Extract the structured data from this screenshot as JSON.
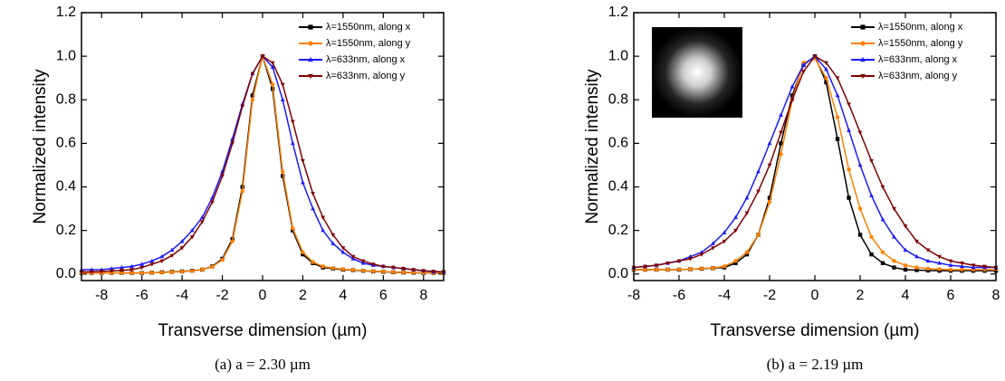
{
  "chart_data": [
    {
      "type": "line",
      "caption": "(a) a = 2.30 µm",
      "xlabel": "Transverse dimension (µm)",
      "ylabel": "Normalized intensity",
      "x": [
        -9,
        -8.5,
        -8,
        -7.5,
        -7,
        -6.5,
        -6,
        -5.5,
        -5,
        -4.5,
        -4,
        -3.5,
        -3,
        -2.5,
        -2,
        -1.5,
        -1,
        -0.5,
        0,
        0.5,
        1,
        1.5,
        2,
        2.5,
        3,
        3.5,
        4,
        4.5,
        5,
        5.5,
        6,
        6.5,
        7,
        7.5,
        8,
        8.5,
        9
      ],
      "xlim": [
        -9,
        9
      ],
      "xticks": [
        -8,
        -6,
        -4,
        -2,
        0,
        2,
        4,
        6,
        8
      ],
      "ylim": [
        -0.03,
        1.2
      ],
      "yticks": [
        {
          "value": 0,
          "label": "0.0"
        },
        0.2,
        0.4,
        0.6,
        0.8,
        {
          "value": 1,
          "label": "1.0"
        },
        1.2
      ],
      "series": [
        {
          "name": "λ=1550nm, along x",
          "color": "#000000",
          "marker": "square",
          "values": [
            0.005,
            0.005,
            0.005,
            0.005,
            0.005,
            0.005,
            0.005,
            0.006,
            0.008,
            0.01,
            0.012,
            0.015,
            0.02,
            0.035,
            0.07,
            0.16,
            0.4,
            0.82,
            1.0,
            0.85,
            0.45,
            0.2,
            0.09,
            0.05,
            0.03,
            0.025,
            0.02,
            0.018,
            0.015,
            0.012,
            0.01,
            0.008,
            0.007,
            0.006,
            0.005,
            0.005,
            0.005
          ]
        },
        {
          "name": "λ=1550nm, along y",
          "color": "#ff8000",
          "marker": "circle",
          "values": [
            0.005,
            0.005,
            0.005,
            0.005,
            0.005,
            0.005,
            0.005,
            0.006,
            0.007,
            0.009,
            0.011,
            0.014,
            0.02,
            0.033,
            0.065,
            0.15,
            0.38,
            0.8,
            1.0,
            0.87,
            0.47,
            0.21,
            0.1,
            0.055,
            0.035,
            0.027,
            0.022,
            0.019,
            0.016,
            0.013,
            0.011,
            0.009,
            0.008,
            0.007,
            0.006,
            0.005,
            0.005
          ]
        },
        {
          "name": "λ=633nm, along x",
          "color": "#1a1aff",
          "marker": "triangle-up",
          "values": [
            0.02,
            0.02,
            0.02,
            0.025,
            0.03,
            0.035,
            0.045,
            0.06,
            0.08,
            0.11,
            0.15,
            0.2,
            0.26,
            0.35,
            0.47,
            0.62,
            0.78,
            0.92,
            1.0,
            0.95,
            0.8,
            0.6,
            0.42,
            0.3,
            0.2,
            0.14,
            0.1,
            0.07,
            0.05,
            0.04,
            0.035,
            0.03,
            0.025,
            0.02,
            0.015,
            0.01,
            0.01
          ]
        },
        {
          "name": "λ=633nm, along y",
          "color": "#800000",
          "marker": "triangle-down",
          "values": [
            0.01,
            0.01,
            0.012,
            0.014,
            0.017,
            0.02,
            0.03,
            0.045,
            0.06,
            0.085,
            0.12,
            0.17,
            0.24,
            0.33,
            0.45,
            0.6,
            0.77,
            0.92,
            1.0,
            0.97,
            0.87,
            0.7,
            0.52,
            0.37,
            0.26,
            0.18,
            0.12,
            0.08,
            0.06,
            0.045,
            0.035,
            0.03,
            0.025,
            0.02,
            0.015,
            0.012,
            0.01
          ]
        }
      ]
    },
    {
      "type": "line",
      "caption": "(b) a = 2.19 µm",
      "xlabel": "Transverse dimension (µm)",
      "ylabel": "Normalized intensity",
      "x": [
        -8,
        -7.5,
        -7,
        -6.5,
        -6,
        -5.5,
        -5,
        -4.5,
        -4,
        -3.5,
        -3,
        -2.5,
        -2,
        -1.5,
        -1,
        -0.5,
        0,
        0.5,
        1,
        1.5,
        2,
        2.5,
        3,
        3.5,
        4,
        4.5,
        5,
        5.5,
        6,
        6.5,
        7,
        7.5,
        8
      ],
      "xlim": [
        -8,
        8
      ],
      "xticks": [
        -8,
        -6,
        -4,
        -2,
        0,
        2,
        4,
        6,
        8
      ],
      "ylim": [
        -0.03,
        1.2
      ],
      "yticks": [
        {
          "value": 0,
          "label": "0.0"
        },
        0.2,
        0.4,
        0.6,
        0.8,
        {
          "value": 1,
          "label": "1.0"
        },
        1.2
      ],
      "series": [
        {
          "name": "λ=1550nm, along x",
          "color": "#000000",
          "marker": "square",
          "values": [
            0.02,
            0.02,
            0.02,
            0.02,
            0.02,
            0.022,
            0.024,
            0.027,
            0.03,
            0.05,
            0.09,
            0.18,
            0.35,
            0.6,
            0.82,
            0.96,
            1.0,
            0.88,
            0.62,
            0.35,
            0.18,
            0.09,
            0.05,
            0.03,
            0.02,
            0.018,
            0.016,
            0.015,
            0.015,
            0.015,
            0.015,
            0.015,
            0.015
          ]
        },
        {
          "name": "λ=1550nm, along y",
          "color": "#ff8000",
          "marker": "circle",
          "values": [
            0.02,
            0.02,
            0.02,
            0.02,
            0.021,
            0.022,
            0.025,
            0.028,
            0.035,
            0.06,
            0.1,
            0.18,
            0.33,
            0.55,
            0.8,
            0.97,
            0.99,
            0.9,
            0.72,
            0.48,
            0.3,
            0.17,
            0.1,
            0.06,
            0.04,
            0.03,
            0.025,
            0.022,
            0.02,
            0.02,
            0.02,
            0.02,
            0.02
          ]
        },
        {
          "name": "λ=633nm, along x",
          "color": "#1a1aff",
          "marker": "triangle-up",
          "values": [
            0.03,
            0.035,
            0.04,
            0.05,
            0.06,
            0.08,
            0.1,
            0.14,
            0.19,
            0.26,
            0.35,
            0.47,
            0.6,
            0.73,
            0.86,
            0.96,
            1.0,
            0.94,
            0.82,
            0.66,
            0.5,
            0.36,
            0.25,
            0.17,
            0.11,
            0.08,
            0.06,
            0.05,
            0.04,
            0.035,
            0.03,
            0.03,
            0.03
          ]
        },
        {
          "name": "λ=633nm, along y",
          "color": "#800000",
          "marker": "triangle-down",
          "values": [
            0.03,
            0.035,
            0.04,
            0.05,
            0.06,
            0.07,
            0.09,
            0.12,
            0.15,
            0.2,
            0.28,
            0.38,
            0.5,
            0.65,
            0.8,
            0.93,
            1.0,
            0.97,
            0.9,
            0.78,
            0.65,
            0.52,
            0.4,
            0.3,
            0.22,
            0.15,
            0.11,
            0.08,
            0.06,
            0.05,
            0.04,
            0.035,
            0.03
          ]
        }
      ]
    }
  ]
}
